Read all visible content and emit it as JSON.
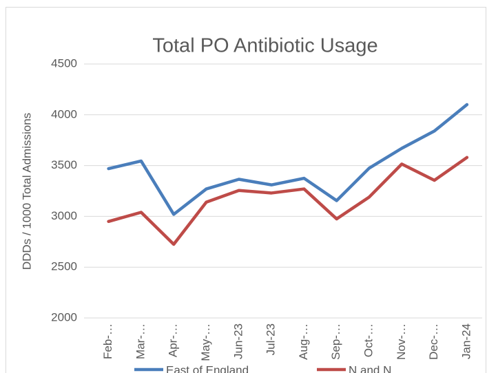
{
  "chart_data": {
    "type": "line",
    "title": "Total PO Antibiotic Usage",
    "y_label": "DDDs / 1000 Total Admissions",
    "categories": [
      "Feb-…",
      "Mar-…",
      "Apr-…",
      "May-…",
      "Jun-23",
      "Jul-23",
      "Aug-…",
      "Sep-…",
      "Oct-…",
      "Nov-…",
      "Dec-…",
      "Jan-24"
    ],
    "series": [
      {
        "name": "East of England",
        "color": "#4a7ebb",
        "values": [
          3470,
          3545,
          3020,
          3270,
          3365,
          3310,
          3375,
          3155,
          3475,
          3670,
          3840,
          4100
        ]
      },
      {
        "name": "N and N",
        "color": "#be4b48",
        "values": [
          2950,
          3040,
          2725,
          3140,
          3255,
          3230,
          3270,
          2975,
          3190,
          3515,
          3355,
          3580
        ]
      }
    ],
    "ylim": [
      2000,
      4500
    ],
    "yticks": [
      2000,
      2500,
      3000,
      3500,
      4000,
      4500
    ],
    "grid": true,
    "legend": "bottom"
  }
}
